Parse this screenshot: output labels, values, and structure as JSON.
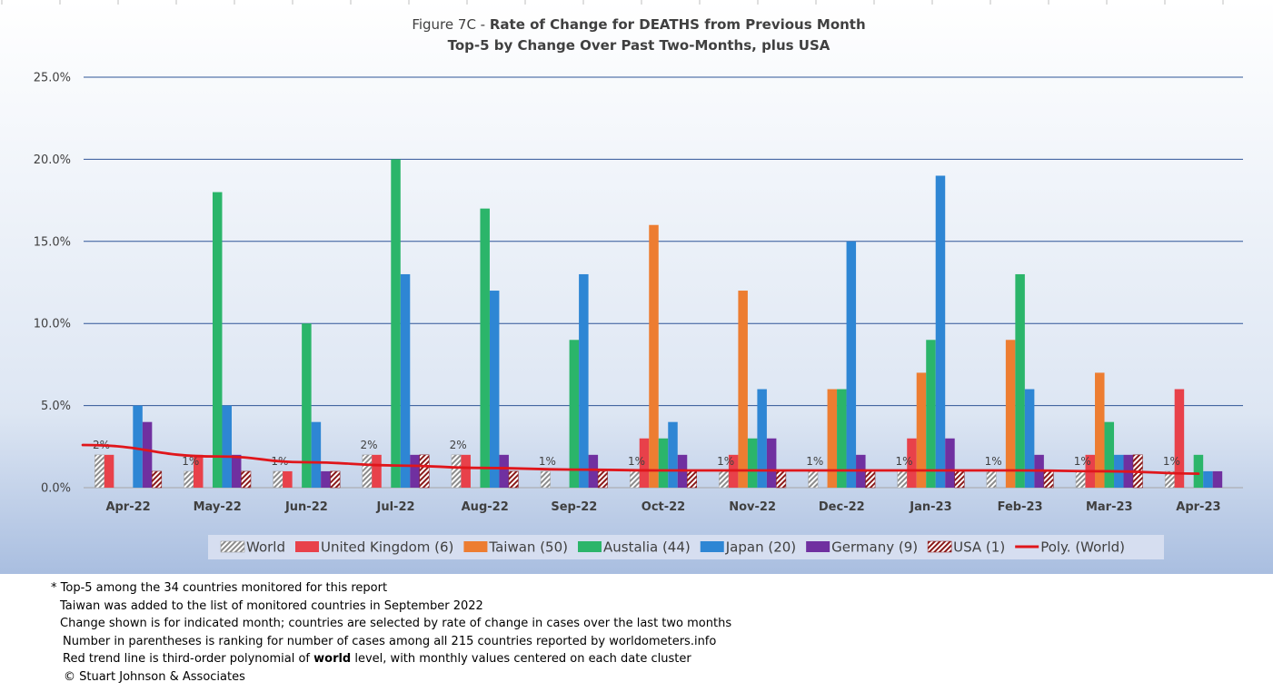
{
  "chart_data": {
    "type": "bar",
    "title_prefix": "Figure 7C - ",
    "title_main": "Rate of Change for DEATHS from Previous Month",
    "subtitle": "Top-5 by Change Over Past Two-Months, plus USA",
    "categories": [
      "Apr-22",
      "May-22",
      "Jun-22",
      "Jul-22",
      "Aug-22",
      "Sep-22",
      "Oct-22",
      "Nov-22",
      "Dec-22",
      "Jan-23",
      "Feb-23",
      "Mar-23",
      "Apr-23"
    ],
    "ylim": [
      0,
      25
    ],
    "yticks": [
      "0.0%",
      "5.0%",
      "10.0%",
      "15.0%",
      "20.0%",
      "25.0%"
    ],
    "ytick_values": [
      0,
      5,
      10,
      15,
      20,
      25
    ],
    "grid": true,
    "legend_position": "bottom",
    "series": [
      {
        "name": "World",
        "color": "#a6a6a6",
        "pattern": "hatch-gray",
        "values": [
          2,
          1,
          1,
          2,
          2,
          1,
          1,
          1,
          1,
          1,
          1,
          1,
          1
        ],
        "labels": [
          "2%",
          "1%",
          "1%",
          "2%",
          "2%",
          "1%",
          "1%",
          "1%",
          "1%",
          "1%",
          "1%",
          "1%",
          "1%"
        ]
      },
      {
        "name": "United Kingdom (6)",
        "color": "#e8414a",
        "values": [
          2,
          2,
          1,
          2,
          2,
          0,
          3,
          2,
          0,
          3,
          0,
          2,
          6
        ]
      },
      {
        "name": "Taiwan (50)",
        "color": "#ed7d31",
        "values": [
          0,
          0,
          0,
          0,
          0,
          0,
          16,
          12,
          6,
          7,
          9,
          7,
          0
        ]
      },
      {
        "name": "Austalia (44)",
        "color": "#2bb56a",
        "values": [
          0,
          18,
          10,
          20,
          17,
          9,
          3,
          3,
          6,
          9,
          13,
          4,
          2
        ]
      },
      {
        "name": "Japan (20)",
        "color": "#2e86d4",
        "values": [
          5,
          5,
          4,
          13,
          12,
          13,
          4,
          6,
          15,
          19,
          6,
          2,
          1
        ]
      },
      {
        "name": "Germany (9)",
        "color": "#7030a0",
        "values": [
          4,
          2,
          1,
          2,
          2,
          2,
          2,
          3,
          2,
          3,
          2,
          2,
          1
        ]
      },
      {
        "name": "USA  (1)",
        "color": "#8b1a1a",
        "pattern": "hatch-red",
        "values": [
          1,
          1,
          1,
          2,
          1,
          1,
          1,
          1,
          1,
          1,
          1,
          2,
          0
        ]
      }
    ],
    "trend": {
      "name": "Poly. (World)",
      "color": "#e0161b",
      "values": [
        2.6,
        1.9,
        1.55,
        1.35,
        1.2,
        1.1,
        1.05,
        1.05,
        1.05,
        1.05,
        1.05,
        1.0,
        0.85
      ]
    }
  },
  "notes": [
    "* Top-5 among the 34 countries monitored for this report",
    "Taiwan was added to the list of monitored countries in September 2022",
    "Change shown is for indicated month; countries are selected by rate of change in cases over the last two months",
    "Number in parentheses is ranking for number of cases among all 215 countries reported by worldometers.info",
    "Red trend line is third-order polynomial of ",
    "world",
    " level, with monthly values centered on each date cluster",
    "© Stuart Johnson & Associates"
  ]
}
